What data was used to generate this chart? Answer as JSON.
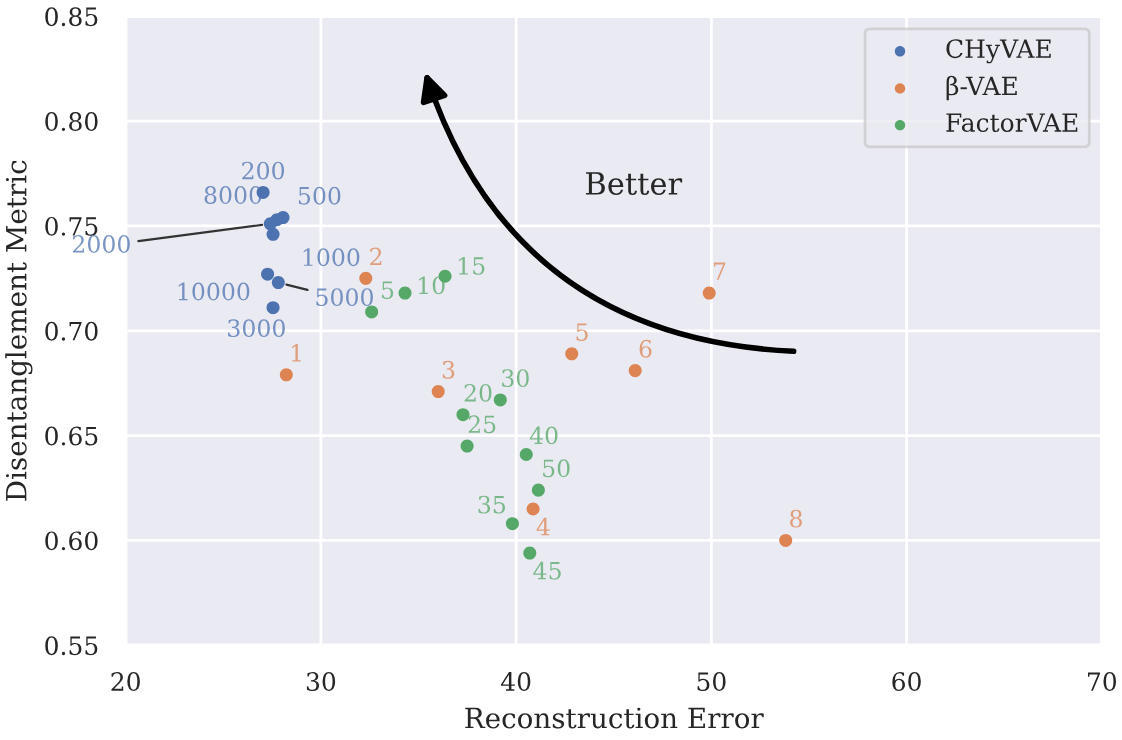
{
  "chart_data": {
    "type": "scatter",
    "xlabel": "Reconstruction Error",
    "ylabel": "Disentanglement Metric",
    "xlim": [
      20,
      70
    ],
    "xticks": [
      20,
      30,
      40,
      50,
      60,
      70
    ],
    "ylim": [
      0.55,
      0.85
    ],
    "yticks": [
      {
        "value": 0.55,
        "label": "0.55"
      },
      {
        "value": 0.6,
        "label": "0.60"
      },
      {
        "value": 0.65,
        "label": "0.65"
      },
      {
        "value": 0.7,
        "label": "0.70"
      },
      {
        "value": 0.75,
        "label": "0.75"
      },
      {
        "value": 0.8,
        "label": "0.80"
      },
      {
        "value": 0.85,
        "label": "0.85"
      }
    ],
    "grid": true,
    "legend": "top right",
    "marker": "circle",
    "series": [
      {
        "name": "CHyVAE",
        "color": "#4c72b0",
        "x": [
          27.04,
          28.06,
          27.75,
          27.41,
          27.55,
          27.27,
          27.82,
          27.55
        ],
        "values": [
          0.766,
          0.754,
          0.753,
          0.751,
          0.746,
          0.727,
          0.723,
          0.711
        ]
      },
      {
        "name": "β-VAE",
        "color": "#dd8452",
        "x": [
          28.23,
          32.3,
          36.01,
          40.87,
          42.85,
          46.1,
          49.89,
          53.81
        ],
        "values": [
          0.679,
          0.725,
          0.671,
          0.615,
          0.689,
          0.681,
          0.718,
          0.6
        ]
      },
      {
        "name": "FactorVAE",
        "color": "#55a868",
        "x": [
          32.6,
          34.31,
          36.36,
          37.28,
          37.49,
          39.19,
          39.81,
          40.52,
          40.7,
          41.14
        ],
        "values": [
          0.709,
          0.718,
          0.726,
          0.66,
          0.645,
          0.667,
          0.608,
          0.641,
          0.594,
          0.624
        ]
      }
    ],
    "annotations": [
      {
        "text": "200",
        "x": 27.04,
        "y": 0.766
      },
      {
        "text": "500",
        "x": 28.06,
        "y": 0.754
      },
      {
        "text": "8000",
        "x": 27.75,
        "y": 0.753
      },
      {
        "text": "2000",
        "x": 27.41,
        "y": 0.751
      },
      {
        "text": "1000",
        "x": 27.55,
        "y": 0.746
      },
      {
        "text": "10000",
        "x": 27.27,
        "y": 0.727
      },
      {
        "text": "5000",
        "x": 27.82,
        "y": 0.723
      },
      {
        "text": "3000",
        "x": 27.55,
        "y": 0.711
      },
      {
        "text": "1",
        "x": 28.23,
        "y": 0.679
      },
      {
        "text": "2",
        "x": 32.3,
        "y": 0.725
      },
      {
        "text": "3",
        "x": 36.01,
        "y": 0.671
      },
      {
        "text": "4",
        "x": 40.87,
        "y": 0.615
      },
      {
        "text": "5",
        "x": 42.85,
        "y": 0.689
      },
      {
        "text": "6",
        "x": 46.1,
        "y": 0.681
      },
      {
        "text": "7",
        "x": 49.89,
        "y": 0.718
      },
      {
        "text": "8",
        "x": 53.81,
        "y": 0.6
      },
      {
        "text": "5",
        "x": 32.6,
        "y": 0.709
      },
      {
        "text": "10",
        "x": 34.31,
        "y": 0.718
      },
      {
        "text": "15",
        "x": 36.36,
        "y": 0.726
      },
      {
        "text": "20",
        "x": 37.28,
        "y": 0.66
      },
      {
        "text": "25",
        "x": 37.49,
        "y": 0.645
      },
      {
        "text": "30",
        "x": 39.19,
        "y": 0.667
      },
      {
        "text": "35",
        "x": 39.81,
        "y": 0.608
      },
      {
        "text": "40",
        "x": 40.52,
        "y": 0.641
      },
      {
        "text": "45",
        "x": 40.7,
        "y": 0.594
      },
      {
        "text": "50",
        "x": 41.14,
        "y": 0.624
      },
      "Better"
    ]
  }
}
